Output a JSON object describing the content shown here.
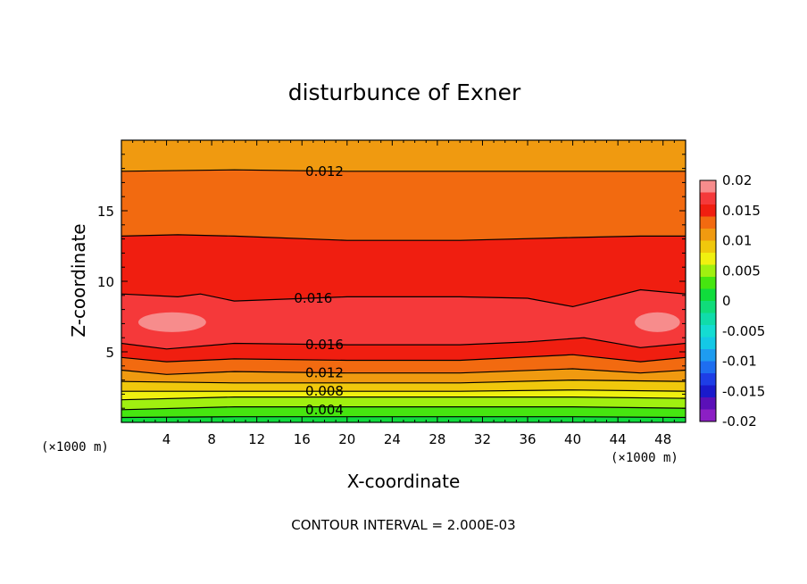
{
  "chart_data": {
    "type": "heatmap",
    "title": "disturbunce of Exner",
    "xlabel": "X-coordinate",
    "ylabel": "Z-coordinate",
    "x_unit": "(×1000 m)",
    "x_unit_right": "(×1000 m)",
    "xlim": [
      0,
      50
    ],
    "ylim": [
      0,
      20
    ],
    "x_ticks": [
      4,
      8,
      12,
      16,
      20,
      24,
      28,
      32,
      36,
      40,
      44,
      48
    ],
    "y_ticks": [
      5,
      10,
      15
    ],
    "colorbar": {
      "ticks": [
        "0.02",
        "0.015",
        "0.01",
        "0.005",
        "0",
        "-0.005",
        "-0.01",
        "-0.015",
        "-0.02"
      ],
      "range": [
        -0.02,
        0.02
      ],
      "bands": [
        {
          "from": -0.02,
          "to": -0.018,
          "color": "#8c1fc4"
        },
        {
          "from": -0.018,
          "to": -0.016,
          "color": "#5b10b8"
        },
        {
          "from": -0.016,
          "to": -0.014,
          "color": "#1a1acc"
        },
        {
          "from": -0.014,
          "to": -0.012,
          "color": "#1e3ee6"
        },
        {
          "from": -0.012,
          "to": -0.01,
          "color": "#1e6ef0"
        },
        {
          "from": -0.01,
          "to": -0.008,
          "color": "#1e9cf0"
        },
        {
          "from": -0.008,
          "to": -0.006,
          "color": "#14c8e6"
        },
        {
          "from": -0.006,
          "to": -0.004,
          "color": "#14dcd2"
        },
        {
          "from": -0.004,
          "to": -0.002,
          "color": "#10dcaa"
        },
        {
          "from": -0.002,
          "to": 0.0,
          "color": "#10dc7a"
        },
        {
          "from": 0.0,
          "to": 0.002,
          "color": "#10dc3c"
        },
        {
          "from": 0.002,
          "to": 0.004,
          "color": "#46e610"
        },
        {
          "from": 0.004,
          "to": 0.006,
          "color": "#a0f010"
        },
        {
          "from": 0.006,
          "to": 0.008,
          "color": "#f0f010"
        },
        {
          "from": 0.008,
          "to": 0.01,
          "color": "#f0c80c"
        },
        {
          "from": 0.01,
          "to": 0.012,
          "color": "#f09a10"
        },
        {
          "from": 0.012,
          "to": 0.014,
          "color": "#f26a10"
        },
        {
          "from": 0.014,
          "to": 0.016,
          "color": "#f01e10"
        },
        {
          "from": 0.016,
          "to": 0.018,
          "color": "#f5393a"
        },
        {
          "from": 0.018,
          "to": 0.02,
          "color": "#f78c8c"
        }
      ]
    },
    "contour_interval": 0.002,
    "contours": [
      {
        "level": 0.002,
        "z_profile": [
          [
            0,
            0.35
          ],
          [
            10,
            0.4
          ],
          [
            20,
            0.4
          ],
          [
            30,
            0.4
          ],
          [
            40,
            0.4
          ],
          [
            50,
            0.35
          ]
        ]
      },
      {
        "level": 0.004,
        "z_profile": [
          [
            0,
            0.9
          ],
          [
            10,
            1.1
          ],
          [
            20,
            1.1
          ],
          [
            30,
            1.1
          ],
          [
            40,
            1.1
          ],
          [
            50,
            1.0
          ]
        ]
      },
      {
        "level": 0.006,
        "z_profile": [
          [
            0,
            1.6
          ],
          [
            10,
            1.8
          ],
          [
            20,
            1.8
          ],
          [
            30,
            1.8
          ],
          [
            40,
            1.8
          ],
          [
            50,
            1.7
          ]
        ]
      },
      {
        "level": 0.008,
        "z_profile": [
          [
            0,
            2.2
          ],
          [
            10,
            2.2
          ],
          [
            20,
            2.2
          ],
          [
            30,
            2.2
          ],
          [
            40,
            2.3
          ],
          [
            50,
            2.2
          ]
        ]
      },
      {
        "level": 0.01,
        "z_profile": [
          [
            0,
            2.9
          ],
          [
            10,
            2.8
          ],
          [
            20,
            2.8
          ],
          [
            30,
            2.8
          ],
          [
            40,
            3.0
          ],
          [
            50,
            2.9
          ]
        ]
      },
      {
        "level": 0.012,
        "z_profile": [
          [
            0,
            3.7
          ],
          [
            4,
            3.4
          ],
          [
            10,
            3.6
          ],
          [
            20,
            3.5
          ],
          [
            30,
            3.5
          ],
          [
            40,
            3.8
          ],
          [
            46,
            3.5
          ],
          [
            50,
            3.7
          ]
        ]
      },
      {
        "level": 0.014,
        "z_profile": [
          [
            0,
            4.6
          ],
          [
            4,
            4.3
          ],
          [
            10,
            4.5
          ],
          [
            20,
            4.4
          ],
          [
            30,
            4.4
          ],
          [
            40,
            4.8
          ],
          [
            46,
            4.3
          ],
          [
            50,
            4.6
          ]
        ]
      },
      {
        "level": 0.016,
        "z_profile": [
          [
            0,
            5.6
          ],
          [
            4,
            5.2
          ],
          [
            10,
            5.6
          ],
          [
            20,
            5.5
          ],
          [
            30,
            5.5
          ],
          [
            36,
            5.7
          ],
          [
            41,
            6.0
          ],
          [
            46,
            5.3
          ],
          [
            50,
            5.6
          ]
        ]
      },
      {
        "level": 0.016,
        "z_profile": [
          [
            0,
            9.1
          ],
          [
            5,
            8.9
          ],
          [
            7,
            9.1
          ],
          [
            10,
            8.6
          ],
          [
            20,
            8.9
          ],
          [
            30,
            8.9
          ],
          [
            36,
            8.8
          ],
          [
            40,
            8.2
          ],
          [
            46,
            9.4
          ],
          [
            50,
            9.1
          ]
        ]
      },
      {
        "level": 0.014,
        "z_profile": [
          [
            0,
            13.2
          ],
          [
            5,
            13.3
          ],
          [
            10,
            13.2
          ],
          [
            20,
            12.9
          ],
          [
            30,
            12.9
          ],
          [
            40,
            13.1
          ],
          [
            46,
            13.2
          ],
          [
            50,
            13.2
          ]
        ]
      },
      {
        "level": 0.012,
        "z_profile": [
          [
            0,
            17.8
          ],
          [
            10,
            17.9
          ],
          [
            20,
            17.8
          ],
          [
            30,
            17.8
          ],
          [
            40,
            17.8
          ],
          [
            50,
            17.8
          ]
        ]
      }
    ],
    "contour_labels": [
      {
        "text": "0.012",
        "x": 18,
        "z": 17.8
      },
      {
        "text": "0.016",
        "x": 17,
        "z": 8.8
      },
      {
        "text": "0.016",
        "x": 18,
        "z": 5.5
      },
      {
        "text": "0.012",
        "x": 18,
        "z": 3.5
      },
      {
        "text": "0.008",
        "x": 18,
        "z": 2.2
      },
      {
        "text": "0.004",
        "x": 18,
        "z": 0.9
      }
    ],
    "fill_regions": [
      {
        "lo": 0.0,
        "z_profile": [
          [
            0,
            0.0
          ],
          [
            50,
            0.0
          ]
        ]
      },
      {
        "lo": 0.002,
        "z_profile": [
          [
            0,
            0.35
          ],
          [
            10,
            0.4
          ],
          [
            20,
            0.4
          ],
          [
            30,
            0.4
          ],
          [
            40,
            0.4
          ],
          [
            50,
            0.35
          ]
        ]
      },
      {
        "lo": 0.004,
        "z_profile": [
          [
            0,
            0.9
          ],
          [
            10,
            1.1
          ],
          [
            20,
            1.1
          ],
          [
            30,
            1.1
          ],
          [
            40,
            1.1
          ],
          [
            50,
            1.0
          ]
        ]
      },
      {
        "lo": 0.006,
        "z_profile": [
          [
            0,
            1.6
          ],
          [
            10,
            1.8
          ],
          [
            20,
            1.8
          ],
          [
            30,
            1.8
          ],
          [
            40,
            1.8
          ],
          [
            50,
            1.7
          ]
        ]
      },
      {
        "lo": 0.008,
        "z_profile": [
          [
            0,
            2.2
          ],
          [
            10,
            2.2
          ],
          [
            20,
            2.2
          ],
          [
            30,
            2.2
          ],
          [
            40,
            2.3
          ],
          [
            50,
            2.2
          ]
        ]
      },
      {
        "lo": 0.01,
        "z_profile": [
          [
            0,
            2.9
          ],
          [
            10,
            2.8
          ],
          [
            20,
            2.8
          ],
          [
            30,
            2.8
          ],
          [
            40,
            3.0
          ],
          [
            50,
            2.9
          ]
        ]
      },
      {
        "lo": 0.012,
        "z_profile": [
          [
            0,
            3.7
          ],
          [
            4,
            3.4
          ],
          [
            10,
            3.6
          ],
          [
            20,
            3.5
          ],
          [
            30,
            3.5
          ],
          [
            40,
            3.8
          ],
          [
            46,
            3.5
          ],
          [
            50,
            3.7
          ]
        ]
      },
      {
        "lo": 0.014,
        "z_profile": [
          [
            0,
            4.6
          ],
          [
            4,
            4.3
          ],
          [
            10,
            4.5
          ],
          [
            20,
            4.4
          ],
          [
            30,
            4.4
          ],
          [
            40,
            4.8
          ],
          [
            46,
            4.3
          ],
          [
            50,
            4.6
          ]
        ]
      },
      {
        "lo": 0.016,
        "z_profile": [
          [
            0,
            5.6
          ],
          [
            4,
            5.2
          ],
          [
            10,
            5.6
          ],
          [
            20,
            5.5
          ],
          [
            30,
            5.5
          ],
          [
            36,
            5.7
          ],
          [
            41,
            6.0
          ],
          [
            46,
            5.3
          ],
          [
            50,
            5.6
          ]
        ]
      },
      {
        "lo": 0.014,
        "z_profile": [
          [
            0,
            9.1
          ],
          [
            5,
            8.9
          ],
          [
            7,
            9.1
          ],
          [
            10,
            8.6
          ],
          [
            20,
            8.9
          ],
          [
            30,
            8.9
          ],
          [
            36,
            8.8
          ],
          [
            40,
            8.2
          ],
          [
            46,
            9.4
          ],
          [
            50,
            9.1
          ]
        ]
      },
      {
        "lo": 0.012,
        "z_profile": [
          [
            0,
            13.2
          ],
          [
            5,
            13.3
          ],
          [
            10,
            13.2
          ],
          [
            20,
            12.9
          ],
          [
            30,
            12.9
          ],
          [
            40,
            13.1
          ],
          [
            46,
            13.2
          ],
          [
            50,
            13.2
          ]
        ]
      },
      {
        "lo": 0.01,
        "z_profile": [
          [
            0,
            17.8
          ],
          [
            10,
            17.9
          ],
          [
            20,
            17.8
          ],
          [
            30,
            17.8
          ],
          [
            40,
            17.8
          ],
          [
            50,
            17.8
          ]
        ]
      }
    ],
    "extra_bands": [
      {
        "lo": 0.012,
        "z_profile": [
          [
            0,
            15.6
          ],
          [
            10,
            15.7
          ],
          [
            20,
            15.5
          ],
          [
            30,
            15.5
          ],
          [
            40,
            15.6
          ],
          [
            50,
            15.6
          ]
        ]
      },
      {
        "lo": 0.014,
        "z_profile": [
          [
            0,
            11.2
          ],
          [
            10,
            11.1
          ],
          [
            20,
            10.9
          ],
          [
            30,
            10.9
          ],
          [
            40,
            11.0
          ],
          [
            50,
            11.2
          ]
        ]
      }
    ],
    "maxima": [
      {
        "x": 4.5,
        "z": 7.1,
        "rx": 3.0,
        "rz": 0.7,
        "lo": 0.018
      },
      {
        "x": 47.5,
        "z": 7.1,
        "rx": 2.0,
        "rz": 0.7,
        "lo": 0.018
      }
    ],
    "footer": "CONTOUR INTERVAL = 2.000E-03"
  }
}
